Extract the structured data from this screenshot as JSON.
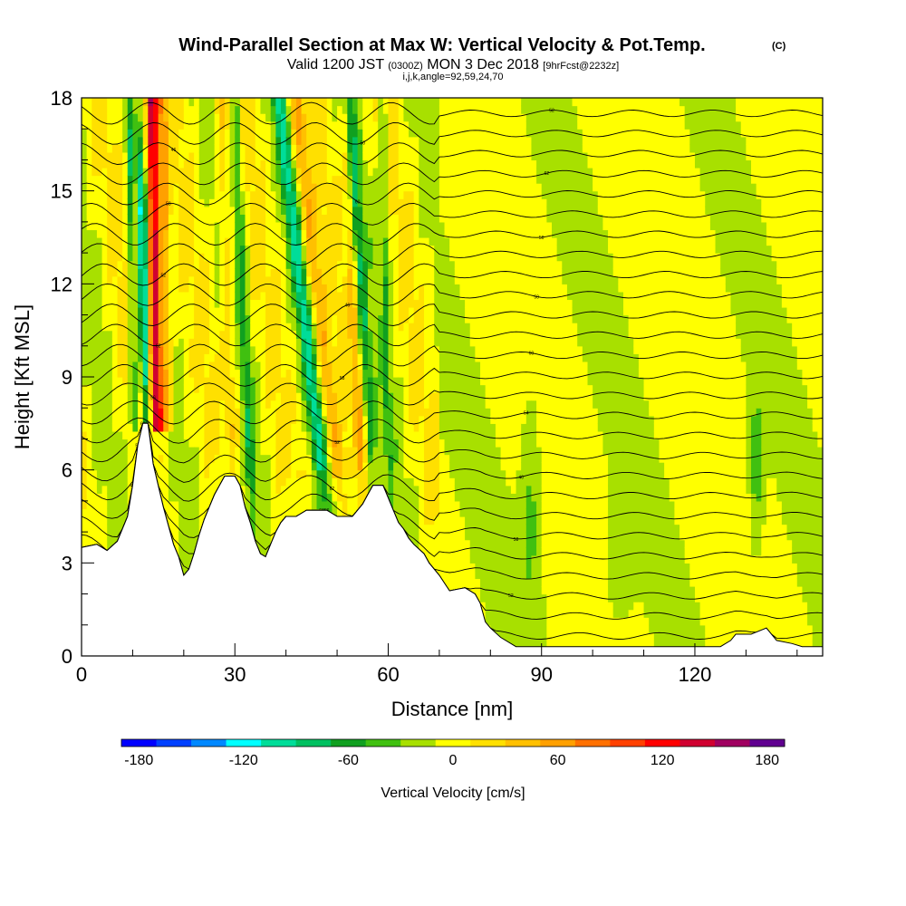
{
  "header": {
    "title": "Wind-Parallel Section at Max W: Vertical Velocity & Pot.Temp.",
    "title_mark": "(C)",
    "valid_prefix": "Valid 1200 JST",
    "valid_utc": "(0300Z)",
    "valid_date": "MON 3 Dec 2018",
    "forecast": "[9hrFcst@2232z]",
    "indices": "i,j,k,angle=92,59,24,70"
  },
  "chart_data": {
    "type": "heatmap",
    "xlabel": "Distance [nm]",
    "ylabel": "Height [Kft MSL]",
    "xlim": [
      0,
      145
    ],
    "ylim": [
      0,
      18
    ],
    "x_ticks": [
      0,
      30,
      60,
      90,
      120
    ],
    "x_tick_labels": [
      "0",
      "30",
      "60",
      "90",
      "120"
    ],
    "y_ticks": [
      0,
      3,
      6,
      9,
      12,
      15,
      18
    ],
    "y_tick_labels": [
      "0",
      "3",
      "6",
      "9",
      "12",
      "15",
      "18"
    ],
    "colorbar": {
      "label": "Vertical Velocity [cm/s]",
      "range": [
        -180,
        180
      ],
      "step": 20,
      "tick_values": [
        -180,
        -120,
        -60,
        0,
        60,
        120,
        180
      ],
      "tick_labels": [
        "-180",
        "-120",
        "-60",
        "0",
        "60",
        "120",
        "180"
      ],
      "colors": [
        "#0000ff",
        "#0040ff",
        "#0088ff",
        "#00ffff",
        "#00dd99",
        "#00c060",
        "#10a020",
        "#40c010",
        "#a8e000",
        "#ffff00",
        "#ffe000",
        "#ffc000",
        "#ffa000",
        "#ff7000",
        "#ff4000",
        "#ff0000",
        "#d00030",
        "#a00060",
        "#600090"
      ]
    },
    "terrain_kft": [
      [
        0,
        3.5
      ],
      [
        3,
        3.6
      ],
      [
        5,
        3.4
      ],
      [
        7,
        3.7
      ],
      [
        9,
        4.5
      ],
      [
        10,
        5.5
      ],
      [
        11,
        6.8
      ],
      [
        12,
        7.5
      ],
      [
        13,
        7.5
      ],
      [
        14,
        6.2
      ],
      [
        15,
        5.5
      ],
      [
        16,
        4.8
      ],
      [
        17,
        4.2
      ],
      [
        18,
        3.6
      ],
      [
        19,
        3.2
      ],
      [
        20,
        2.6
      ],
      [
        21,
        2.8
      ],
      [
        22,
        3.3
      ],
      [
        23,
        3.9
      ],
      [
        24,
        4.4
      ],
      [
        25,
        4.8
      ],
      [
        26,
        5.2
      ],
      [
        27,
        5.5
      ],
      [
        28,
        5.8
      ],
      [
        30,
        5.8
      ],
      [
        31,
        5.5
      ],
      [
        32,
        4.8
      ],
      [
        33,
        4.3
      ],
      [
        34,
        3.7
      ],
      [
        35,
        3.3
      ],
      [
        36,
        3.2
      ],
      [
        37,
        3.6
      ],
      [
        38,
        4.0
      ],
      [
        39,
        4.3
      ],
      [
        40,
        4.5
      ],
      [
        42,
        4.5
      ],
      [
        44,
        4.7
      ],
      [
        48,
        4.7
      ],
      [
        50,
        4.5
      ],
      [
        53,
        4.5
      ],
      [
        55,
        4.9
      ],
      [
        56,
        5.2
      ],
      [
        57,
        5.5
      ],
      [
        59,
        5.5
      ],
      [
        60,
        5.1
      ],
      [
        61,
        4.7
      ],
      [
        62,
        4.3
      ],
      [
        63,
        4.1
      ],
      [
        64,
        3.8
      ],
      [
        65,
        3.6
      ],
      [
        67,
        3.3
      ],
      [
        68,
        3.0
      ],
      [
        70,
        2.6
      ],
      [
        72,
        2.1
      ],
      [
        75,
        2.2
      ],
      [
        77,
        2.0
      ],
      [
        78,
        1.7
      ],
      [
        79,
        1.1
      ],
      [
        80,
        0.9
      ],
      [
        82,
        0.6
      ],
      [
        85,
        0.3
      ],
      [
        100,
        0.3
      ],
      [
        120,
        0.3
      ],
      [
        125,
        0.3
      ],
      [
        127,
        0.5
      ],
      [
        128,
        0.7
      ],
      [
        131,
        0.7
      ],
      [
        134,
        0.9
      ],
      [
        136,
        0.5
      ],
      [
        139,
        0.4
      ],
      [
        141,
        0.3
      ],
      [
        145,
        0.3
      ]
    ],
    "contour_label_values": [
      "46",
      "50",
      "52",
      "54",
      "56",
      "58",
      "60",
      "62"
    ]
  }
}
